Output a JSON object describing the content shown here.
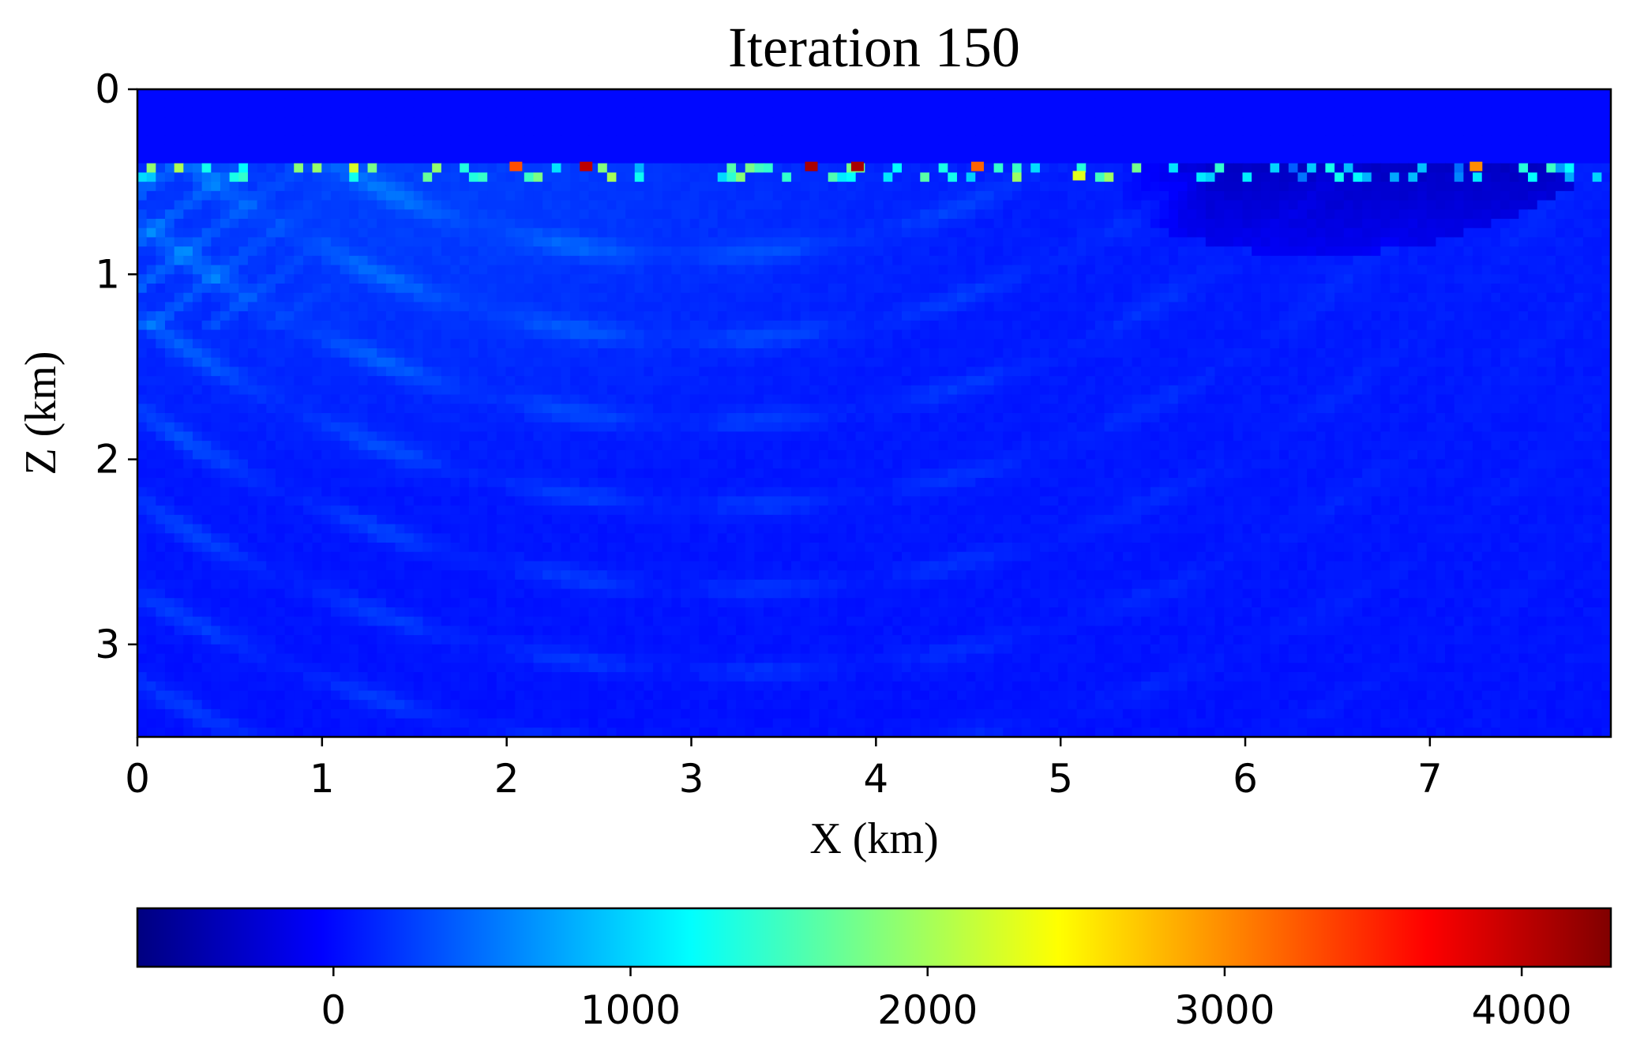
{
  "chart_data": {
    "type": "heatmap",
    "title": "Iteration 150",
    "xlabel": "X (km)",
    "ylabel": "Z (km)",
    "xlim": [
      0,
      7.98
    ],
    "ylim": [
      3.5,
      0
    ],
    "x_ticks": [
      "0",
      "1",
      "2",
      "3",
      "4",
      "5",
      "6",
      "7"
    ],
    "y_ticks": [
      "0",
      "1",
      "2",
      "3"
    ],
    "colormap": "jet",
    "colorbar": {
      "orientation": "horizontal",
      "placement": "bottom",
      "range": [
        -660,
        4300
      ],
      "ticks": [
        "0",
        "1000",
        "2000",
        "3000",
        "4000"
      ]
    },
    "field_description": {
      "water_layer_depth_km": 0.38,
      "background_value": 0,
      "near_surface_hotspots_km": [
        {
          "x": 2.05,
          "z": 0.4,
          "value": 3300
        },
        {
          "x": 2.43,
          "z": 0.4,
          "value": 4000
        },
        {
          "x": 3.65,
          "z": 0.4,
          "value": 4100
        },
        {
          "x": 3.9,
          "z": 0.4,
          "value": 4100
        },
        {
          "x": 4.55,
          "z": 0.4,
          "value": 3200
        },
        {
          "x": 5.1,
          "z": 0.45,
          "value": 2300
        },
        {
          "x": 7.25,
          "z": 0.4,
          "value": 3000
        }
      ],
      "low_zone_km": {
        "x": [
          5.3,
          7.8
        ],
        "z": [
          0.45,
          0.9
        ],
        "value": -450
      }
    }
  }
}
